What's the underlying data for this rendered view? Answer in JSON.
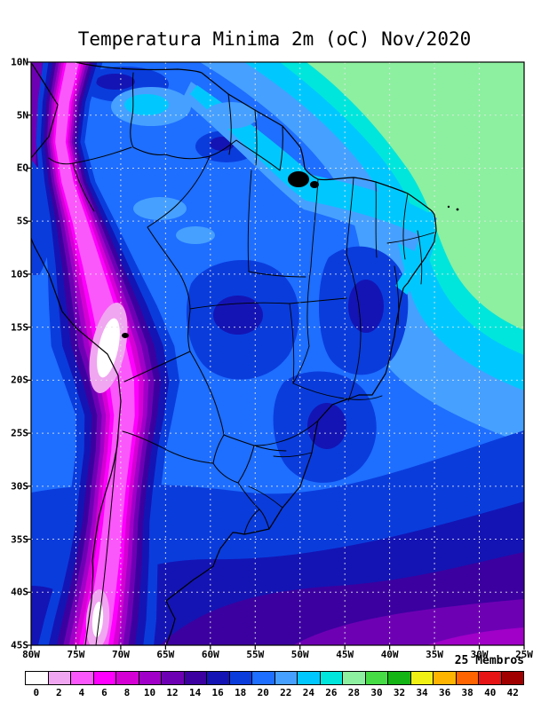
{
  "title": "Temperatura Minima 2m (oC) Nov/2020",
  "members_label": "25 Membros",
  "axes": {
    "lat_labels": [
      "10N",
      "5N",
      "EQ",
      "5S",
      "10S",
      "15S",
      "20S",
      "25S",
      "30S",
      "35S",
      "40S",
      "45S"
    ],
    "lon_labels": [
      "80W",
      "75W",
      "70W",
      "65W",
      "60W",
      "55W",
      "50W",
      "45W",
      "40W",
      "35W",
      "30W",
      "25W"
    ]
  },
  "chart_data": {
    "type": "heatmap",
    "title": "Temperatura Minima 2m (oC) Nov/2020",
    "variable": "Minimum 2m temperature",
    "unit": "oC",
    "ensemble_label": "25 Membros",
    "lat_range": [
      "10N",
      "45S"
    ],
    "lon_range": [
      "80W",
      "25W"
    ],
    "grid": true,
    "x_ticks": [
      "80W",
      "75W",
      "70W",
      "65W",
      "60W",
      "55W",
      "50W",
      "45W",
      "40W",
      "35W",
      "30W",
      "25W"
    ],
    "y_ticks": [
      "10N",
      "5N",
      "EQ",
      "5S",
      "10S",
      "15S",
      "20S",
      "25S",
      "30S",
      "35S",
      "40S",
      "45S"
    ],
    "colorbar": {
      "labels": [
        "0",
        "2",
        "4",
        "6",
        "8",
        "10",
        "12",
        "14",
        "16",
        "18",
        "20",
        "22",
        "24",
        "26",
        "28",
        "30",
        "32",
        "34",
        "36",
        "38",
        "40",
        "42"
      ],
      "colors": [
        "#ffffff",
        "#f0a6f0",
        "#fb58fb",
        "#ff00ff",
        "#d400d4",
        "#a000c8",
        "#6e00b4",
        "#3c00a0",
        "#1414b4",
        "#0a3cdc",
        "#1e6eff",
        "#46a0ff",
        "#00c8ff",
        "#00e6dc",
        "#8cf0a0",
        "#46dc46",
        "#14b414",
        "#f0f014",
        "#ffb400",
        "#ff6400",
        "#e61414",
        "#a00000"
      ]
    },
    "field_regions": [
      {
        "area": "Tropical Atlantic off NE Brazil / top-right ocean",
        "value_range_c": "24-28"
      },
      {
        "area": "Brazilian north and northeast coastal strip",
        "value_range_c": "20-24"
      },
      {
        "area": "Amazon basin interior",
        "value_range_c": "16-20"
      },
      {
        "area": "Central Brazil plateau patches",
        "value_range_c": "14-16"
      },
      {
        "area": "Southeast Brazil highlands",
        "value_range_c": "14-16"
      },
      {
        "area": "Andes cordillera stripe",
        "value_range_c": "0-10"
      },
      {
        "area": "Altiplano core near 15S-20S",
        "value_range_c": "below 2"
      },
      {
        "area": "Southern Andes / Patagonia core",
        "value_range_c": "0-6"
      },
      {
        "area": "South Atlantic 35S-45S bands",
        "value_range_c": "6-14"
      },
      {
        "area": "Northwest Pacific corner band",
        "value_range_c": "8-14"
      }
    ]
  }
}
